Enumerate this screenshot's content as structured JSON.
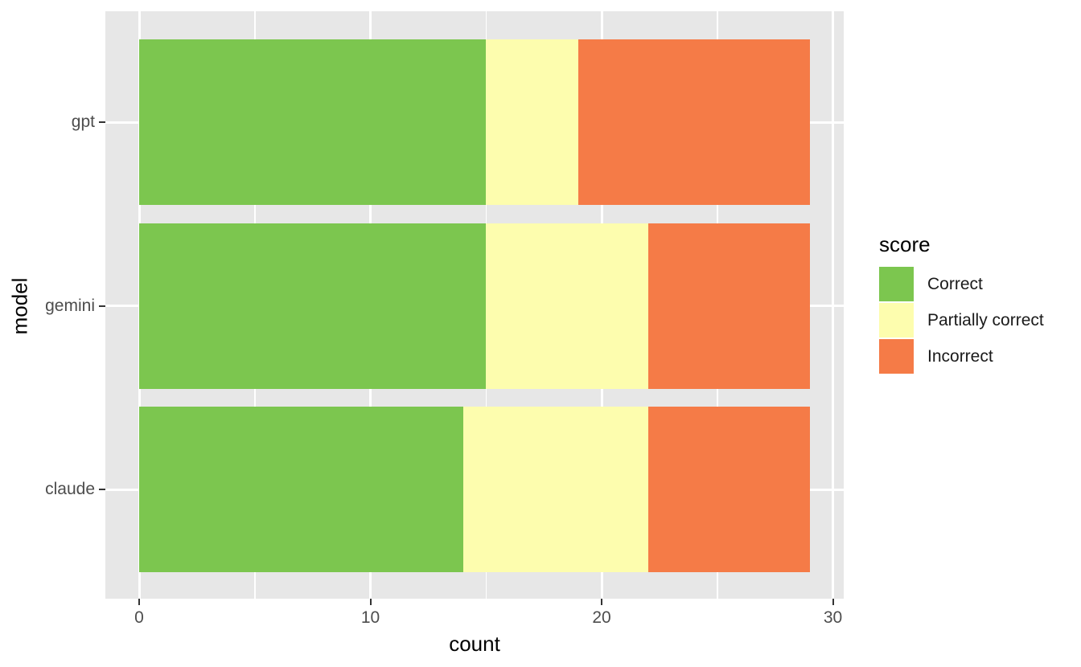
{
  "chart_data": {
    "type": "bar",
    "orientation": "horizontal",
    "stacked": true,
    "title": "",
    "xlabel": "count",
    "ylabel": "model",
    "categories": [
      "gpt",
      "gemini",
      "claude"
    ],
    "series": [
      {
        "name": "Correct",
        "color": "#7CC64F",
        "values": [
          15,
          15,
          14
        ]
      },
      {
        "name": "Partially correct",
        "color": "#FDFDAE",
        "values": [
          4,
          7,
          8
        ]
      },
      {
        "name": "Incorrect",
        "color": "#F57B47",
        "values": [
          10,
          7,
          7
        ]
      }
    ],
    "totals": [
      29,
      29,
      29
    ],
    "x_ticks": [
      0,
      10,
      20,
      30
    ],
    "x_minor_ticks": [
      5,
      15,
      25
    ],
    "xlim": [
      -1.45,
      30.45
    ],
    "grid": "on",
    "legend_title": "score",
    "legend_position": "right",
    "colors": {
      "panel_background": "#E7E7E7",
      "gridline": "#FFFFFF",
      "tick_mark": "#333333",
      "tick_label": "#4D4D4D",
      "axis_title": "#000000"
    }
  }
}
